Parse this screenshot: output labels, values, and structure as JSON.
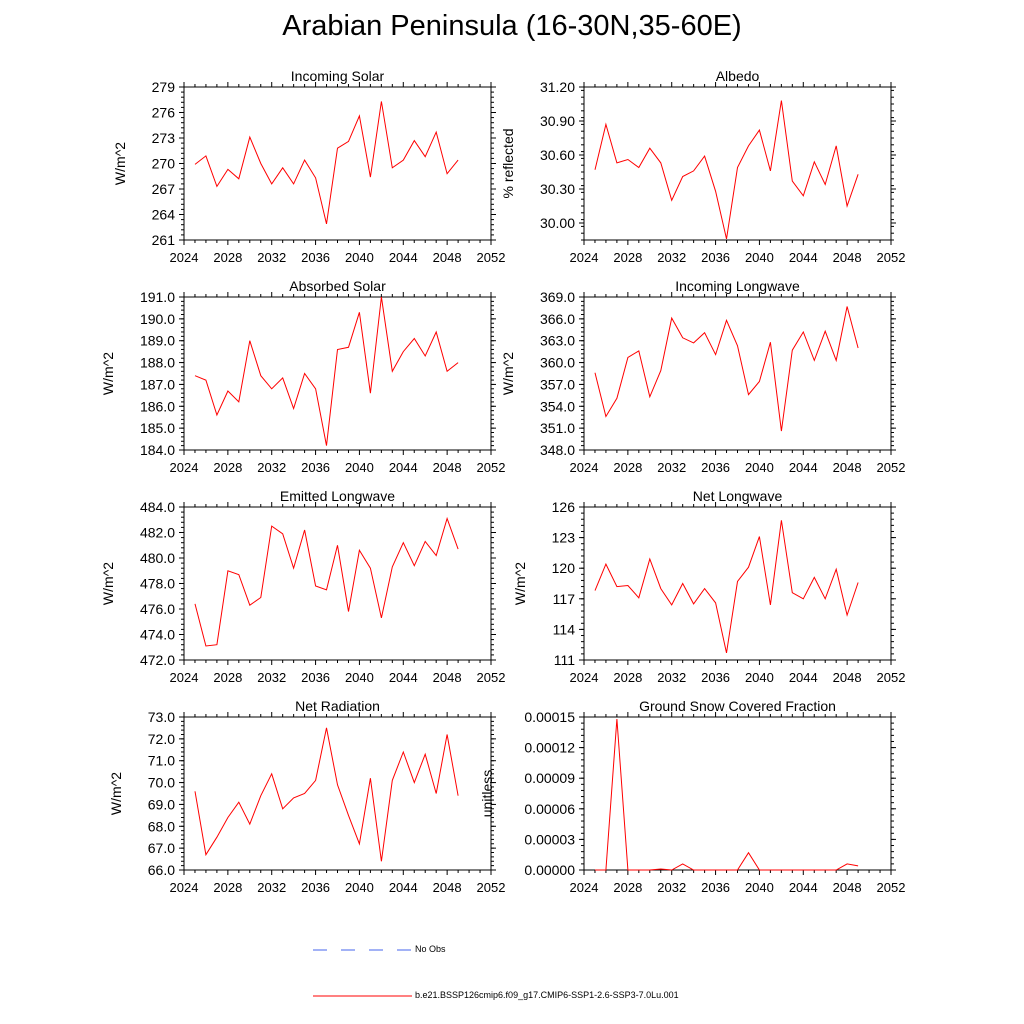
{
  "title": "Arabian Peninsula (16-30N,35-60E)",
  "legend": {
    "obs_label": "No Obs",
    "obs_color": "#4466ee",
    "model_label": "b.e21.BSSP126cmip6.f09_g17.CMIP6-SSP1-2.6-SSP3-7.0Lu.001",
    "model_color": "#ff0000"
  },
  "chart_data": [
    {
      "type": "line",
      "title": "Incoming Solar",
      "ylabel": "W/m^2",
      "xlim": [
        2024,
        2052
      ],
      "ylim": [
        261,
        279
      ],
      "xticks": [
        2024,
        2028,
        2032,
        2036,
        2040,
        2044,
        2048,
        2052
      ],
      "yticks": [
        "261",
        "264",
        "267",
        "270",
        "273",
        "276",
        "279"
      ],
      "x": [
        2025,
        2026,
        2027,
        2028,
        2029,
        2030,
        2031,
        2032,
        2033,
        2034,
        2035,
        2036,
        2037,
        2038,
        2039,
        2040,
        2041,
        2042,
        2043,
        2044,
        2045,
        2046,
        2047,
        2048,
        2049
      ],
      "values": [
        269.9,
        270.9,
        267.3,
        269.3,
        268.2,
        273.1,
        270.0,
        267.6,
        269.5,
        267.6,
        270.4,
        268.3,
        262.9,
        271.8,
        272.6,
        275.6,
        268.4,
        277.3,
        269.5,
        270.4,
        272.7,
        270.8,
        273.7,
        268.8,
        270.4
      ]
    },
    {
      "type": "line",
      "title": "Albedo",
      "ylabel": "% reflected",
      "xlim": [
        2024,
        2052
      ],
      "ylim": [
        29.85,
        31.2
      ],
      "xticks": [
        2024,
        2028,
        2032,
        2036,
        2040,
        2044,
        2048,
        2052
      ],
      "yticks": [
        "30.00",
        "30.30",
        "30.60",
        "30.90",
        "31.20"
      ],
      "x": [
        2025,
        2026,
        2027,
        2028,
        2029,
        2030,
        2031,
        2032,
        2033,
        2034,
        2035,
        2036,
        2037,
        2038,
        2039,
        2040,
        2041,
        2042,
        2043,
        2044,
        2045,
        2046,
        2047,
        2048,
        2049
      ],
      "values": [
        30.47,
        30.87,
        30.53,
        30.56,
        30.49,
        30.66,
        30.53,
        30.2,
        30.41,
        30.46,
        30.59,
        30.28,
        29.86,
        30.49,
        30.68,
        30.82,
        30.46,
        31.08,
        30.37,
        30.24,
        30.54,
        30.34,
        30.68,
        30.15,
        30.43
      ]
    },
    {
      "type": "line",
      "title": "Absorbed Solar",
      "ylabel": "W/m^2",
      "xlim": [
        2024,
        2052
      ],
      "ylim": [
        184.0,
        191.0
      ],
      "xticks": [
        2024,
        2028,
        2032,
        2036,
        2040,
        2044,
        2048,
        2052
      ],
      "yticks": [
        "184.0",
        "185.0",
        "186.0",
        "187.0",
        "188.0",
        "189.0",
        "190.0",
        "191.0"
      ],
      "x": [
        2025,
        2026,
        2027,
        2028,
        2029,
        2030,
        2031,
        2032,
        2033,
        2034,
        2035,
        2036,
        2037,
        2038,
        2039,
        2040,
        2041,
        2042,
        2043,
        2044,
        2045,
        2046,
        2047,
        2048,
        2049
      ],
      "values": [
        187.4,
        187.2,
        185.6,
        186.7,
        186.2,
        189.0,
        187.4,
        186.8,
        187.3,
        185.9,
        187.5,
        186.8,
        184.2,
        188.6,
        188.7,
        190.3,
        186.6,
        191.0,
        187.6,
        188.5,
        189.1,
        188.3,
        189.4,
        187.6,
        188.0
      ]
    },
    {
      "type": "line",
      "title": "Incoming Longwave",
      "ylabel": "W/m^2",
      "xlim": [
        2024,
        2052
      ],
      "ylim": [
        348.0,
        369.0
      ],
      "xticks": [
        2024,
        2028,
        2032,
        2036,
        2040,
        2044,
        2048,
        2052
      ],
      "yticks": [
        "348.0",
        "351.0",
        "354.0",
        "357.0",
        "360.0",
        "363.0",
        "366.0",
        "369.0"
      ],
      "x": [
        2025,
        2026,
        2027,
        2028,
        2029,
        2030,
        2031,
        2032,
        2033,
        2034,
        2035,
        2036,
        2037,
        2038,
        2039,
        2040,
        2041,
        2042,
        2043,
        2044,
        2045,
        2046,
        2047,
        2048,
        2049
      ],
      "values": [
        358.6,
        352.6,
        355.1,
        360.7,
        361.6,
        355.3,
        358.9,
        366.1,
        363.4,
        362.7,
        364.1,
        361.1,
        365.8,
        362.3,
        355.6,
        357.4,
        362.8,
        350.6,
        361.7,
        364.2,
        360.3,
        364.3,
        360.3,
        367.7,
        362.0
      ]
    },
    {
      "type": "line",
      "title": "Emitted Longwave",
      "ylabel": "W/m^2",
      "xlim": [
        2024,
        2052
      ],
      "ylim": [
        472.0,
        484.0
      ],
      "xticks": [
        2024,
        2028,
        2032,
        2036,
        2040,
        2044,
        2048,
        2052
      ],
      "yticks": [
        "472.0",
        "474.0",
        "476.0",
        "478.0",
        "480.0",
        "482.0",
        "484.0"
      ],
      "x": [
        2025,
        2026,
        2027,
        2028,
        2029,
        2030,
        2031,
        2032,
        2033,
        2034,
        2035,
        2036,
        2037,
        2038,
        2039,
        2040,
        2041,
        2042,
        2043,
        2044,
        2045,
        2046,
        2047,
        2048,
        2049
      ],
      "values": [
        476.4,
        473.1,
        473.2,
        479.0,
        478.7,
        476.3,
        476.9,
        482.5,
        481.9,
        479.2,
        482.2,
        477.8,
        477.5,
        481.0,
        475.8,
        480.6,
        479.2,
        475.3,
        479.3,
        481.2,
        479.4,
        481.3,
        480.2,
        483.1,
        480.7
      ]
    },
    {
      "type": "line",
      "title": "Net Longwave",
      "ylabel": "W/m^2",
      "xlim": [
        2024,
        2052
      ],
      "ylim": [
        111,
        126
      ],
      "xticks": [
        2024,
        2028,
        2032,
        2036,
        2040,
        2044,
        2048,
        2052
      ],
      "yticks": [
        "111",
        "114",
        "117",
        "120",
        "123",
        "126"
      ],
      "x": [
        2025,
        2026,
        2027,
        2028,
        2029,
        2030,
        2031,
        2032,
        2033,
        2034,
        2035,
        2036,
        2037,
        2038,
        2039,
        2040,
        2041,
        2042,
        2043,
        2044,
        2045,
        2046,
        2047,
        2048,
        2049
      ],
      "values": [
        117.8,
        120.4,
        118.2,
        118.3,
        117.1,
        120.9,
        118.0,
        116.4,
        118.5,
        116.5,
        118.0,
        116.6,
        111.7,
        118.7,
        120.1,
        123.1,
        116.4,
        124.7,
        117.6,
        117.0,
        119.1,
        117.0,
        119.9,
        115.4,
        118.6
      ]
    },
    {
      "type": "line",
      "title": "Net Radiation",
      "ylabel": "W/m^2",
      "xlim": [
        2024,
        2052
      ],
      "ylim": [
        66.0,
        73.0
      ],
      "xticks": [
        2024,
        2028,
        2032,
        2036,
        2040,
        2044,
        2048,
        2052
      ],
      "yticks": [
        "66.0",
        "67.0",
        "68.0",
        "69.0",
        "70.0",
        "71.0",
        "72.0",
        "73.0"
      ],
      "x": [
        2025,
        2026,
        2027,
        2028,
        2029,
        2030,
        2031,
        2032,
        2033,
        2034,
        2035,
        2036,
        2037,
        2038,
        2039,
        2040,
        2041,
        2042,
        2043,
        2044,
        2045,
        2046,
        2047,
        2048,
        2049
      ],
      "values": [
        69.6,
        66.7,
        67.5,
        68.4,
        69.1,
        68.1,
        69.4,
        70.4,
        68.8,
        69.3,
        69.5,
        70.1,
        72.5,
        69.9,
        68.5,
        67.2,
        70.2,
        66.4,
        70.1,
        71.4,
        70.0,
        71.3,
        69.5,
        72.2,
        69.4
      ]
    },
    {
      "type": "line",
      "title": "Ground Snow Covered Fraction",
      "ylabel": "unitless",
      "xlim": [
        2024,
        2052
      ],
      "ylim": [
        0,
        0.00015
      ],
      "xticks": [
        2024,
        2028,
        2032,
        2036,
        2040,
        2044,
        2048,
        2052
      ],
      "yticks": [
        "0.00000",
        "0.00003",
        "0.00006",
        "0.00009",
        "0.00012",
        "0.00015"
      ],
      "x": [
        2025,
        2026,
        2027,
        2028,
        2029,
        2030,
        2031,
        2032,
        2033,
        2034,
        2035,
        2036,
        2037,
        2038,
        2039,
        2040,
        2041,
        2042,
        2043,
        2044,
        2045,
        2046,
        2047,
        2048,
        2049
      ],
      "values": [
        0,
        0,
        0.000148,
        0,
        0,
        0,
        1e-06,
        0,
        6e-06,
        0,
        0,
        0,
        0,
        0,
        1.7e-05,
        0,
        0,
        0,
        0,
        0,
        0,
        0,
        0,
        6e-06,
        4e-06
      ]
    }
  ]
}
